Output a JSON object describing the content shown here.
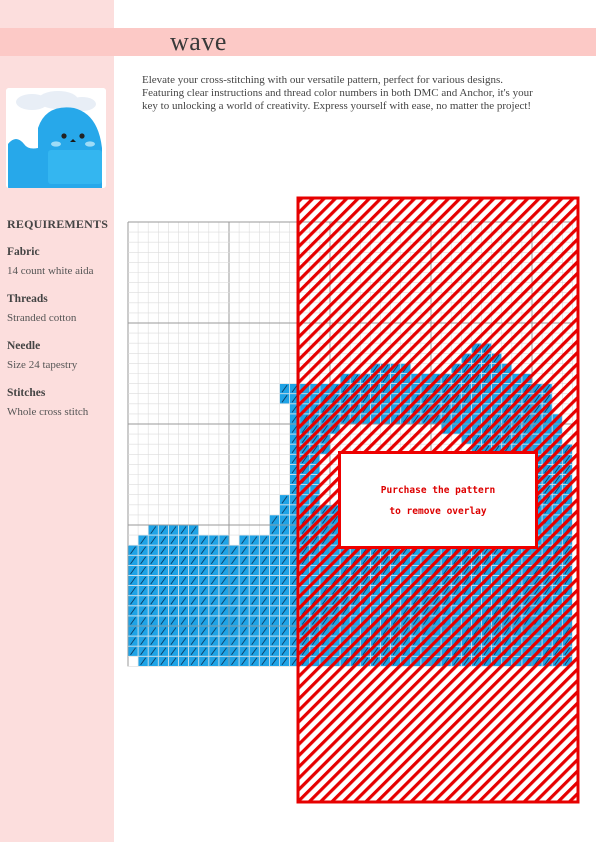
{
  "title": "wave",
  "description": "Elevate your cross-stitching with our versatile pattern, perfect for various designs. Featuring clear instructions and thread color numbers in both DMC and Anchor, it's your key to unlocking a world of creativity. Express yourself with ease, no matter the project!",
  "thumbnail_icon": "wave-mascot-icon",
  "requirements": {
    "heading": "REQUIREMENTS",
    "fabric_label": "Fabric",
    "fabric_value": "14 count white aida",
    "threads_label": "Threads",
    "threads_value": "Stranded cotton",
    "needle_label": "Needle",
    "needle_value": "Size 24 tapestry",
    "stitches_label": "Stitches",
    "stitches_value": "Whole cross stitch"
  },
  "overlay": {
    "line1": "Purchase the pattern",
    "line2": "to remove overlay"
  },
  "colors": {
    "sidebar": "#fcdedd",
    "title_bar": "#fcc9c6",
    "stitch_blue": "#1fa3e6",
    "overlay_red": "#e00000"
  }
}
